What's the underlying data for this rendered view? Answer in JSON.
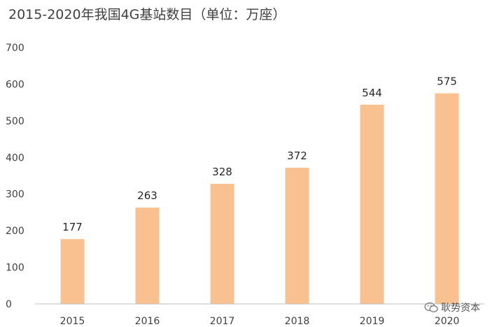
{
  "title": "2015-2020年我国4G基站数目（单位：万座）",
  "watermark": "耿势资本",
  "colors": {
    "bar": "#F9C18F",
    "axis": "#BFBFBF",
    "text": "#404040"
  },
  "chart_data": {
    "type": "bar",
    "title": "2015-2020年我国4G基站数目（单位：万座）",
    "categories": [
      "2015",
      "2016",
      "2017",
      "2018",
      "2019",
      "2020"
    ],
    "values": [
      177,
      263,
      328,
      372,
      544,
      575
    ],
    "ylim": [
      0,
      700
    ],
    "yticks": [
      0,
      100,
      200,
      300,
      400,
      500,
      600,
      700
    ],
    "grid": false,
    "legend": "none"
  }
}
